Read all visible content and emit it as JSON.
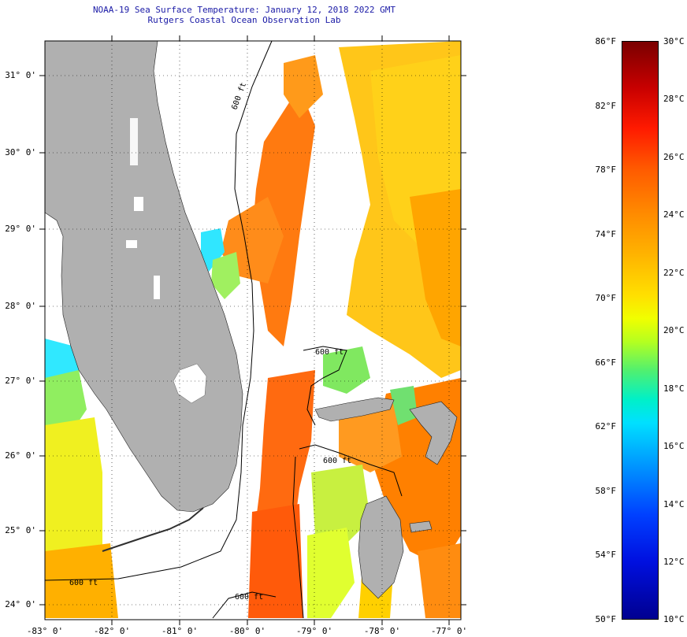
{
  "header": {
    "title_line1": "NOAA-19 Sea Surface Temperature:  January 12, 2018 2022 GMT",
    "title_line2": "Rutgers Coastal Ocean Observation Lab"
  },
  "map": {
    "lat_labels": [
      "31° 0'",
      "30° 0'",
      "29° 0'",
      "28° 0'",
      "27° 0'",
      "26° 0'",
      "25° 0'",
      "24° 0'"
    ],
    "lon_labels": [
      "-83° 0'",
      "-82° 0'",
      "-81° 0'",
      "-80° 0'",
      "-79° 0'",
      "-78° 0'",
      "-77° 0'"
    ],
    "contour_labels": [
      "600 ft",
      "600 ft",
      "600 ft",
      "600 ft",
      "600 ft"
    ],
    "colors": {
      "land": "#b0b0b0",
      "water_clouds": "#ffffff",
      "contour": "#000000"
    }
  },
  "colorbar": {
    "fahrenheit": [
      "86°F",
      "82°F",
      "78°F",
      "74°F",
      "70°F",
      "66°F",
      "62°F",
      "58°F",
      "54°F",
      "50°F"
    ],
    "celsius": [
      "30°C",
      "28°C",
      "26°C",
      "24°C",
      "22°C",
      "20°C",
      "18°C",
      "16°C",
      "14°C",
      "12°C",
      "10°C"
    ]
  }
}
